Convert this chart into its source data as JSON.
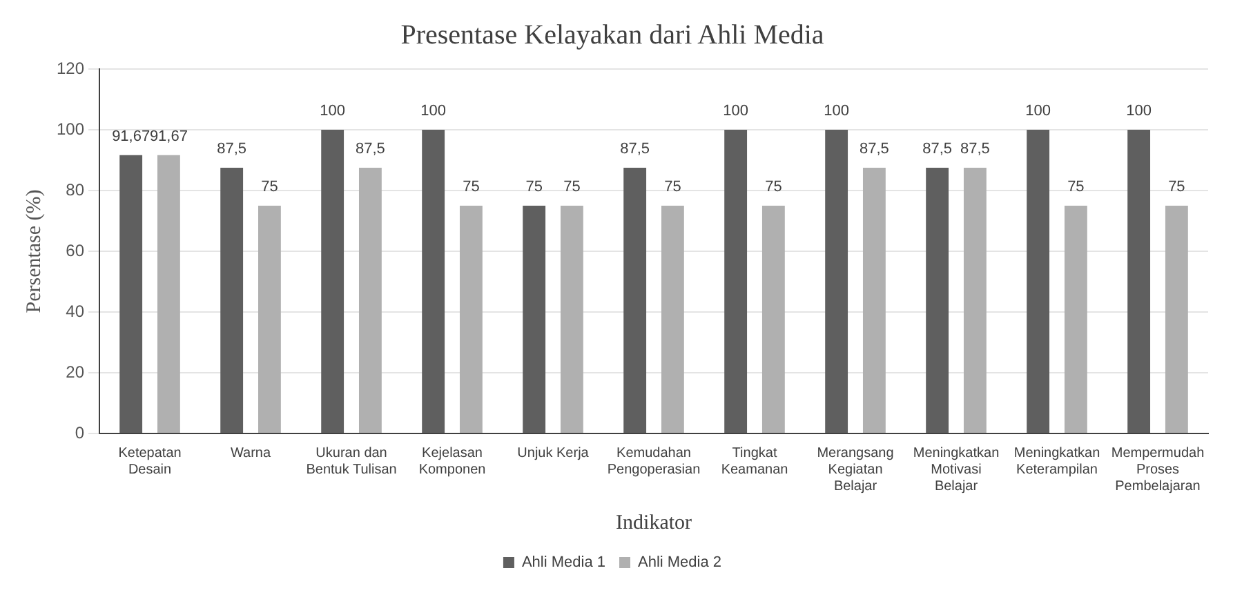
{
  "chart_data": {
    "type": "bar",
    "title": "Presentase Kelayakan dari Ahli Media",
    "xlabel": "Indikator",
    "ylabel": "Persentase (%)",
    "categories": [
      "Ketepatan\nDesain",
      "Warna",
      "Ukuran dan\nBentuk Tulisan",
      "Kejelasan\nKomponen",
      "Unjuk Kerja",
      "Kemudahan\nPengoperasian",
      "Tingkat\nKeamanan",
      "Merangsang\nKegiatan\nBelajar",
      "Meningkatkan\nMotivasi\nBelajar",
      "Meningkatkan\nKeterampilan",
      "Mempermudah\nProses\nPembelajaran"
    ],
    "series": [
      {
        "name": "Ahli Media 1",
        "color": "#5f5f5f",
        "values": [
          91.67,
          87.5,
          100,
          100,
          75,
          87.5,
          100,
          100,
          87.5,
          100,
          100
        ],
        "value_labels": [
          "91,67",
          "87,5",
          "100",
          "100",
          "75",
          "87,5",
          "100",
          "100",
          "87,5",
          "100",
          "100"
        ]
      },
      {
        "name": "Ahli Media 2",
        "color": "#b0b0b0",
        "values": [
          91.67,
          75,
          87.5,
          75,
          75,
          75,
          75,
          87.5,
          87.5,
          75,
          75
        ],
        "value_labels": [
          "91,67",
          "75",
          "87,5",
          "75",
          "75",
          "75",
          "75",
          "87,5",
          "87,5",
          "75",
          "75"
        ]
      }
    ],
    "ylim": [
      0,
      120
    ],
    "yticks": [
      0,
      20,
      40,
      60,
      80,
      100,
      120
    ],
    "grid": "y",
    "legend": "bottom"
  }
}
